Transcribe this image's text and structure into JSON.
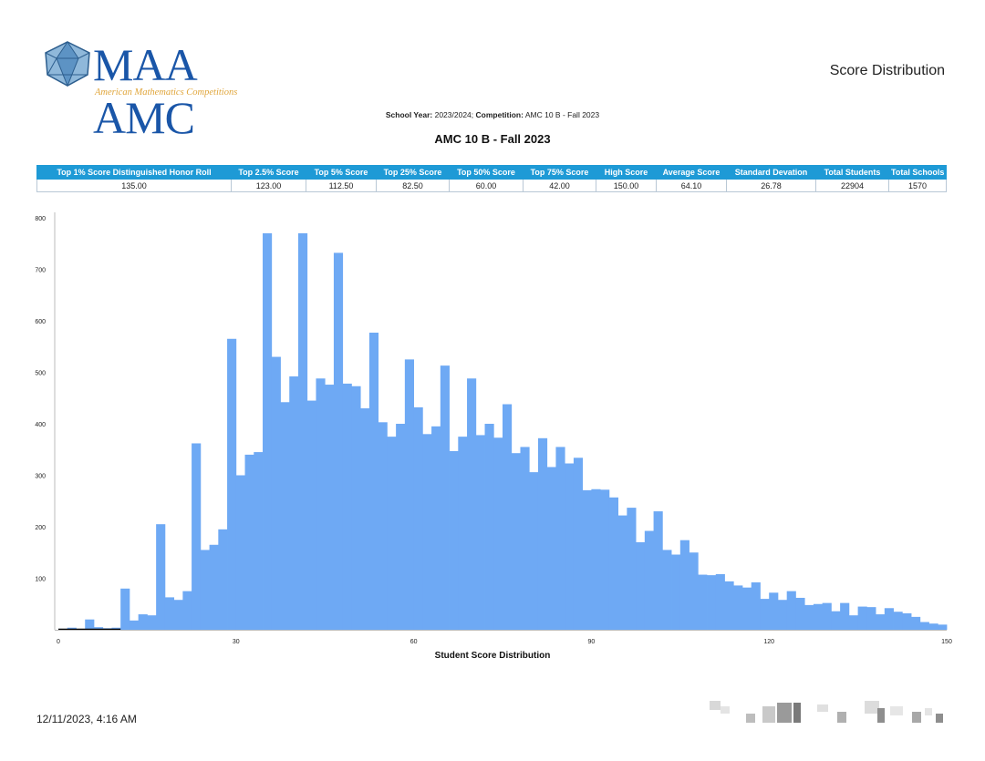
{
  "header": {
    "logo_text": "MAA AMC",
    "logo_subtitle": "American Mathematics Competitions",
    "report_title": "Score Distribution",
    "school_year_label": "School Year:",
    "school_year_value": "2023/2024;",
    "competition_label": "Competition:",
    "competition_value": "AMC 10 B - Fall 2023",
    "title": "AMC 10 B - Fall 2023"
  },
  "stats_table": {
    "columns": [
      "Top 1% Score Distinguished Honor Roll",
      "Top 2.5% Score",
      "Top 5% Score",
      "Top 25% Score",
      "Top 50% Score",
      "Top 75% Score",
      "High Score",
      "Average Score",
      "Standard Devation",
      "Total Students",
      "Total Schools"
    ],
    "values": [
      "135.00",
      "123.00",
      "112.50",
      "82.50",
      "60.00",
      "42.00",
      "150.00",
      "64.10",
      "26.78",
      "22904",
      "1570"
    ]
  },
  "chart_data": {
    "type": "bar",
    "xlabel": "Student Score Distribution",
    "ylabel": "",
    "xlim": [
      0,
      150
    ],
    "ylim": [
      0,
      800
    ],
    "x_ticks": [
      0,
      30,
      60,
      90,
      120,
      150
    ],
    "y_ticks": [
      100,
      200,
      300,
      400,
      500,
      600,
      700,
      800
    ],
    "grid": false,
    "color": "#6ea9f4",
    "bin_width": 1.5,
    "bins": [
      [
        0,
        2
      ],
      [
        1.5,
        4
      ],
      [
        3,
        2
      ],
      [
        4.5,
        20
      ],
      [
        6,
        5
      ],
      [
        7.5,
        3
      ],
      [
        9,
        4
      ],
      [
        10.5,
        80
      ],
      [
        12,
        18
      ],
      [
        13.5,
        30
      ],
      [
        15,
        28
      ],
      [
        16.5,
        205
      ],
      [
        18,
        63
      ],
      [
        19.5,
        58
      ],
      [
        21,
        75
      ],
      [
        22.5,
        362
      ],
      [
        24,
        155
      ],
      [
        25.5,
        165
      ],
      [
        27,
        195
      ],
      [
        28.5,
        565
      ],
      [
        30,
        300
      ],
      [
        31.5,
        340
      ],
      [
        33,
        345
      ],
      [
        34.5,
        770
      ],
      [
        36,
        530
      ],
      [
        37.5,
        442
      ],
      [
        39,
        492
      ],
      [
        40.5,
        770
      ],
      [
        42,
        445
      ],
      [
        43.5,
        488
      ],
      [
        45,
        476
      ],
      [
        46.5,
        732
      ],
      [
        48,
        478
      ],
      [
        49.5,
        473
      ],
      [
        51,
        430
      ],
      [
        52.5,
        577
      ],
      [
        54,
        403
      ],
      [
        55.5,
        375
      ],
      [
        57,
        400
      ],
      [
        58.5,
        525
      ],
      [
        60,
        432
      ],
      [
        61.5,
        380
      ],
      [
        63,
        395
      ],
      [
        64.5,
        513
      ],
      [
        66,
        347
      ],
      [
        67.5,
        375
      ],
      [
        69,
        488
      ],
      [
        70.5,
        378
      ],
      [
        72,
        400
      ],
      [
        73.5,
        373
      ],
      [
        75,
        438
      ],
      [
        76.5,
        343
      ],
      [
        78,
        355
      ],
      [
        79.5,
        306
      ],
      [
        81,
        372
      ],
      [
        82.5,
        316
      ],
      [
        84,
        355
      ],
      [
        85.5,
        323
      ],
      [
        87,
        334
      ],
      [
        88.5,
        271
      ],
      [
        90,
        273
      ],
      [
        91.5,
        272
      ],
      [
        93,
        257
      ],
      [
        94.5,
        222
      ],
      [
        96,
        237
      ],
      [
        97.5,
        170
      ],
      [
        99,
        192
      ],
      [
        100.5,
        230
      ],
      [
        102,
        155
      ],
      [
        103.5,
        146
      ],
      [
        105,
        174
      ],
      [
        106.5,
        150
      ],
      [
        108,
        107
      ],
      [
        109.5,
        106
      ],
      [
        111,
        108
      ],
      [
        112.5,
        94
      ],
      [
        114,
        86
      ],
      [
        115.5,
        82
      ],
      [
        117,
        92
      ],
      [
        118.5,
        60
      ],
      [
        120,
        72
      ],
      [
        121.5,
        58
      ],
      [
        123,
        75
      ],
      [
        124.5,
        62
      ],
      [
        126,
        48
      ],
      [
        127.5,
        50
      ],
      [
        129,
        52
      ],
      [
        130.5,
        36
      ],
      [
        132,
        52
      ],
      [
        133.5,
        28
      ],
      [
        135,
        45
      ],
      [
        136.5,
        44
      ],
      [
        138,
        30
      ],
      [
        139.5,
        42
      ],
      [
        141,
        35
      ],
      [
        142.5,
        32
      ],
      [
        144,
        25
      ],
      [
        145.5,
        15
      ],
      [
        147,
        12
      ],
      [
        148.5,
        10
      ]
    ]
  },
  "footer": {
    "date": "12/11/2023, 4:16 AM"
  }
}
